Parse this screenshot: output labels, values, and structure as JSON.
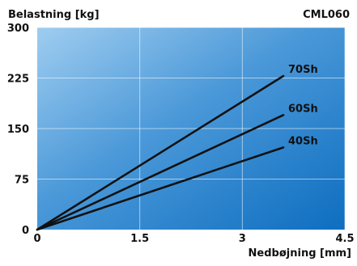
{
  "chart_data": {
    "type": "line",
    "title": "CML060",
    "xlabel": "Nedbøjning [mm]",
    "ylabel": "Belastning [kg]",
    "xlim": [
      0,
      4.5
    ],
    "ylim": [
      0,
      300
    ],
    "x_ticks": [
      "0",
      "1.5",
      "3",
      "4.5"
    ],
    "y_ticks": [
      "0",
      "75",
      "150",
      "225",
      "300"
    ],
    "grid": true,
    "series": [
      {
        "name": "70Sh",
        "x": [
          0,
          3.6
        ],
        "y": [
          0,
          228
        ]
      },
      {
        "name": "60Sh",
        "x": [
          0,
          3.6
        ],
        "y": [
          0,
          170
        ]
      },
      {
        "name": "40Sh",
        "x": [
          0,
          3.6
        ],
        "y": [
          0,
          122
        ]
      }
    ]
  }
}
